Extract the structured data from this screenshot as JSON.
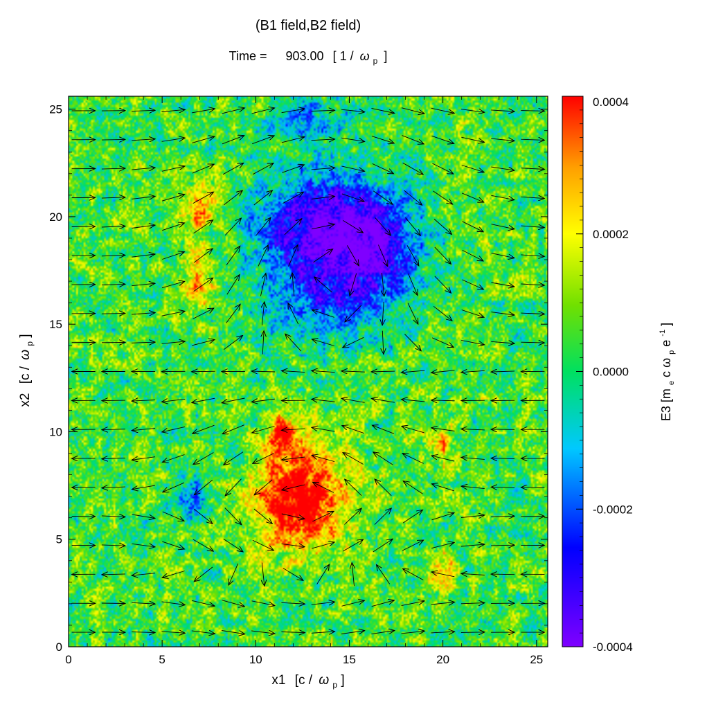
{
  "chart_data": {
    "type": "heatmap",
    "title": "(B1 field,B2 field)",
    "subtitle_prefix": "Time =",
    "time_value": "903.00",
    "time_unit_open": "[ 1 /",
    "time_unit_sym": "ω",
    "time_unit_sub": "p",
    "time_unit_close": "]",
    "xlabel": "x1",
    "ylabel": "x2",
    "axis_unit": {
      "open": "[c /",
      "sym": "ω",
      "sub": "p",
      "close": "]"
    },
    "colorbar_label": {
      "base": "E3 [m",
      "sub1": "e",
      "mid": " c ω",
      "sub2": "p",
      "end": " e",
      "sup": "-1",
      "close": "]"
    },
    "xlim": [
      0,
      25.6
    ],
    "ylim": [
      0,
      25.6
    ],
    "x_ticks": [
      "0",
      "5",
      "10",
      "15",
      "20",
      "25"
    ],
    "y_ticks": [
      "0",
      "5",
      "10",
      "15",
      "20",
      "25"
    ],
    "clim": [
      -0.0004,
      0.0004
    ],
    "colorbar_ticks": [
      "-0.0004",
      "-0.0002",
      "0.0000",
      "0.0002",
      "0.0004"
    ],
    "colormap": [
      "#7f00ff",
      "#0000ff",
      "#00c0ff",
      "#00e060",
      "#70e000",
      "#ffff00",
      "#ffa000",
      "#ff0000"
    ],
    "background_level": 5e-05,
    "structures": [
      {
        "kind": "negative",
        "x": 13.5,
        "y": 19.5,
        "rx": 3.6,
        "ry": 2.6,
        "amp": -0.00045
      },
      {
        "kind": "negative",
        "x": 16.5,
        "y": 18.5,
        "rx": 2.5,
        "ry": 2.8,
        "amp": -0.0003
      },
      {
        "kind": "negative",
        "x": 13.5,
        "y": 16.0,
        "rx": 3.5,
        "ry": 2.2,
        "amp": -0.00022
      },
      {
        "kind": "negative",
        "x": 13.0,
        "y": 24.5,
        "rx": 2.5,
        "ry": 1.0,
        "amp": -0.0002
      },
      {
        "kind": "positive",
        "x": 12.3,
        "y": 6.8,
        "rx": 2.6,
        "ry": 2.6,
        "amp": 0.00045
      },
      {
        "kind": "positive",
        "x": 11.5,
        "y": 9.8,
        "rx": 0.8,
        "ry": 1.0,
        "amp": 0.00035
      },
      {
        "kind": "positive",
        "x": 7.0,
        "y": 20.5,
        "rx": 1.0,
        "ry": 1.2,
        "amp": 0.0003
      },
      {
        "kind": "positive",
        "x": 7.0,
        "y": 17.0,
        "rx": 1.0,
        "ry": 1.5,
        "amp": 0.00022
      },
      {
        "kind": "positive",
        "x": 20.0,
        "y": 3.5,
        "rx": 1.0,
        "ry": 1.0,
        "amp": 0.0002
      },
      {
        "kind": "positive",
        "x": 20.0,
        "y": 9.5,
        "rx": 1.0,
        "ry": 1.0,
        "amp": 0.00018
      },
      {
        "kind": "negative",
        "x": 6.5,
        "y": 7.0,
        "rx": 1.0,
        "ry": 1.2,
        "amp": -0.00018
      }
    ],
    "vector_field": {
      "name": "(B1 field,B2 field)",
      "nx": 16,
      "ny": 19,
      "vortices": [
        {
          "x": 12.5,
          "y": 6.8,
          "strength": 1.0,
          "radius": 3.2
        },
        {
          "x": 14.0,
          "y": 19.3,
          "strength": -1.0,
          "radius": 3.6
        }
      ],
      "band_direction_by_row": [
        1,
        1,
        -1,
        1,
        1,
        -1,
        -1,
        -1,
        -1,
        -1,
        1,
        1,
        1,
        1,
        1,
        1,
        1,
        1,
        1
      ]
    }
  }
}
